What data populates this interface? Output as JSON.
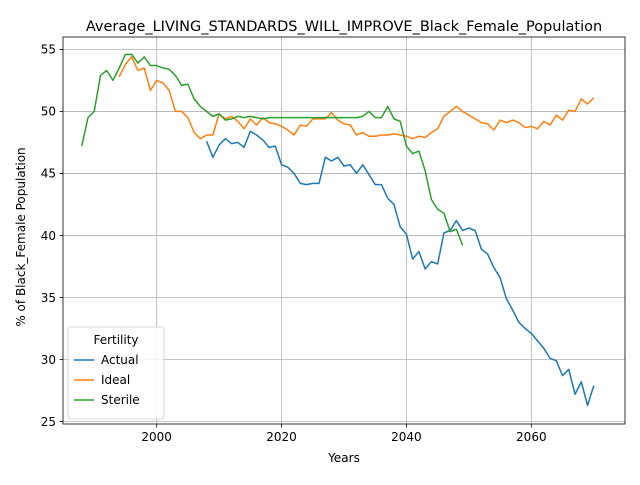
{
  "chart_data": {
    "type": "line",
    "title": "Average_LIVING_STANDARDS_WILL_IMPROVE_Black_Female_Population",
    "xlabel": "Years",
    "ylabel": "% of Black_Female Population",
    "xlim": [
      1985,
      2075
    ],
    "ylim": [
      24.8,
      56.0
    ],
    "xticks": [
      2000,
      2020,
      2040,
      2060
    ],
    "yticks": [
      25,
      30,
      35,
      40,
      45,
      50,
      55
    ],
    "grid": true,
    "legend": {
      "title": "Fertility",
      "placement": "lower-left",
      "entries": [
        "Actual",
        "Ideal",
        "Sterile"
      ]
    },
    "series": [
      {
        "name": "Actual",
        "color": "#1f77b4",
        "x": [
          2008,
          2009,
          2010,
          2011,
          2012,
          2013,
          2014,
          2015,
          2016,
          2017,
          2018,
          2019,
          2020,
          2021,
          2022,
          2023,
          2024,
          2025,
          2026,
          2027,
          2028,
          2029,
          2030,
          2031,
          2032,
          2033,
          2034,
          2035,
          2036,
          2037,
          2038,
          2039,
          2040,
          2041,
          2042,
          2043,
          2044,
          2045,
          2046,
          2047,
          2048,
          2049,
          2050,
          2051,
          2052,
          2053,
          2054,
          2055,
          2056,
          2057,
          2058,
          2059,
          2060,
          2061,
          2062,
          2063,
          2064,
          2065,
          2066,
          2067,
          2068,
          2069,
          2070
        ],
        "y": [
          47.6,
          46.3,
          47.3,
          47.8,
          47.4,
          47.5,
          47.1,
          48.4,
          48.1,
          47.7,
          47.1,
          47.2,
          45.7,
          45.5,
          45.0,
          44.2,
          44.1,
          44.2,
          44.2,
          46.3,
          46.0,
          46.3,
          45.6,
          45.7,
          45.0,
          45.7,
          44.9,
          44.1,
          44.1,
          43.0,
          42.5,
          40.7,
          40.1,
          38.1,
          38.7,
          37.3,
          37.9,
          37.7,
          40.2,
          40.4,
          41.2,
          40.4,
          40.6,
          40.4,
          38.9,
          38.5,
          37.4,
          36.6,
          34.9,
          34.0,
          33.0,
          32.5,
          32.1,
          31.5,
          30.9,
          30.1,
          29.9,
          28.7,
          29.2,
          27.2,
          28.2,
          26.3,
          27.9
        ]
      },
      {
        "name": "Ideal",
        "color": "#ff7f0e",
        "x": [
          1994,
          1995,
          1996,
          1997,
          1998,
          1999,
          2000,
          2001,
          2002,
          2003,
          2004,
          2005,
          2006,
          2007,
          2008,
          2009,
          2010,
          2011,
          2012,
          2013,
          2014,
          2015,
          2016,
          2017,
          2018,
          2019,
          2020,
          2021,
          2022,
          2023,
          2024,
          2025,
          2026,
          2027,
          2028,
          2029,
          2030,
          2031,
          2032,
          2033,
          2034,
          2035,
          2036,
          2037,
          2038,
          2039,
          2040,
          2041,
          2042,
          2043,
          2044,
          2045,
          2046,
          2047,
          2048,
          2049,
          2050,
          2051,
          2052,
          2053,
          2054,
          2055,
          2056,
          2057,
          2058,
          2059,
          2060,
          2061,
          2062,
          2063,
          2064,
          2065,
          2066,
          2067,
          2068,
          2069,
          2070
        ],
        "y": [
          52.8,
          53.8,
          54.4,
          53.3,
          53.5,
          51.7,
          52.5,
          52.3,
          51.7,
          50.0,
          50.0,
          49.5,
          48.3,
          47.8,
          48.1,
          48.1,
          49.8,
          49.4,
          49.6,
          49.2,
          48.6,
          49.4,
          48.9,
          49.5,
          49.1,
          49.0,
          48.8,
          48.5,
          48.1,
          48.9,
          48.8,
          49.4,
          49.4,
          49.4,
          49.9,
          49.3,
          49.0,
          48.9,
          48.1,
          48.3,
          48.0,
          48.0,
          48.1,
          48.1,
          48.2,
          48.1,
          48.0,
          47.8,
          48.0,
          47.9,
          48.3,
          48.6,
          49.6,
          50.0,
          50.4,
          50.0,
          49.7,
          49.4,
          49.1,
          49.0,
          48.5,
          49.3,
          49.1,
          49.3,
          49.1,
          48.7,
          48.8,
          48.6,
          49.2,
          48.9,
          49.7,
          49.3,
          50.1,
          50.0,
          51.0,
          50.6,
          51.1
        ]
      },
      {
        "name": "Sterile",
        "color": "#2ca02c",
        "x": [
          1988,
          1989,
          1990,
          1991,
          1992,
          1993,
          1994,
          1995,
          1996,
          1997,
          1998,
          1999,
          2000,
          2001,
          2002,
          2003,
          2004,
          2005,
          2006,
          2007,
          2008,
          2009,
          2010,
          2011,
          2012,
          2013,
          2014,
          2015,
          2016,
          2017,
          2018,
          2019,
          2020,
          2021,
          2022,
          2023,
          2024,
          2025,
          2026,
          2027,
          2028,
          2029,
          2030,
          2031,
          2032,
          2033,
          2034,
          2035,
          2036,
          2037,
          2038,
          2039,
          2040,
          2041,
          2042,
          2043,
          2044,
          2045,
          2046,
          2047,
          2048,
          2049
        ],
        "y": [
          47.2,
          49.5,
          50.0,
          52.9,
          53.3,
          52.5,
          53.5,
          54.6,
          54.6,
          53.9,
          54.4,
          53.7,
          53.7,
          53.5,
          53.4,
          52.9,
          52.1,
          52.2,
          51.0,
          50.4,
          50.0,
          49.6,
          49.8,
          49.3,
          49.4,
          49.6,
          49.5,
          49.6,
          49.5,
          49.4,
          49.5,
          49.5,
          49.5,
          49.5,
          49.5,
          49.5,
          49.5,
          49.5,
          49.5,
          49.5,
          49.5,
          49.5,
          49.5,
          49.5,
          49.5,
          49.6,
          50.0,
          49.5,
          49.5,
          50.4,
          49.4,
          49.2,
          47.2,
          46.6,
          46.8,
          45.2,
          42.9,
          42.1,
          41.8,
          40.3,
          40.5,
          39.2
        ]
      }
    ]
  }
}
